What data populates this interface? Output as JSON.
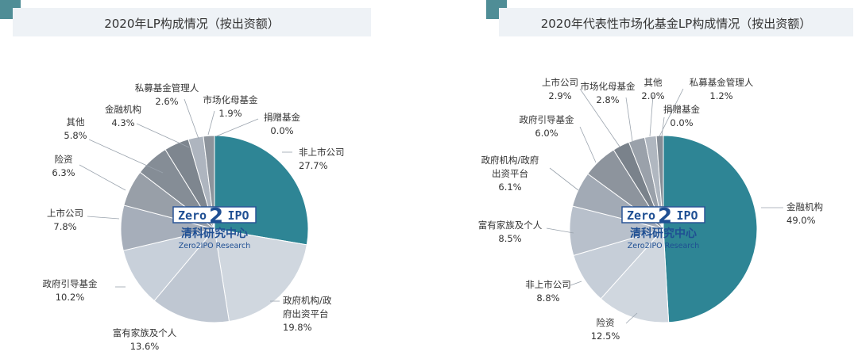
{
  "charts": [
    {
      "title": "2020年LP构成情况（按出资额）",
      "chart_data": {
        "type": "pie",
        "title": "2020年LP构成情况（按出资额）",
        "slices": [
          {
            "label": "非上市公司",
            "value": 27.7,
            "display": "27.7%",
            "color": "#2e8595"
          },
          {
            "label": "政府机构/政府出资平台",
            "value": 19.8,
            "display": "19.8%",
            "color": "#d0d7df"
          },
          {
            "label": "富有家族及个人",
            "value": 13.6,
            "display": "13.6%",
            "color": "#bfc7d2"
          },
          {
            "label": "政府引导基金",
            "value": 10.2,
            "display": "10.2%",
            "color": "#c8d0da"
          },
          {
            "label": "上市公司",
            "value": 7.8,
            "display": "7.8%",
            "color": "#a6aeba"
          },
          {
            "label": "险资",
            "value": 6.3,
            "display": "6.3%",
            "color": "#989fa8"
          },
          {
            "label": "其他",
            "value": 5.8,
            "display": "5.8%",
            "color": "#858d96"
          },
          {
            "label": "金融机构",
            "value": 4.3,
            "display": "4.3%",
            "color": "#7e868f"
          },
          {
            "label": "私募基金管理人",
            "value": 2.6,
            "display": "2.6%",
            "color": "#aeb5bf"
          },
          {
            "label": "市场化母基金",
            "value": 1.9,
            "display": "1.9%",
            "color": "#8d949c"
          },
          {
            "label": "捐赠基金",
            "value": 0.0,
            "display": "0.0%",
            "color": "#6f7780"
          }
        ]
      }
    },
    {
      "title": "2020年代表性市场化基金LP构成情况（按出资额）",
      "chart_data": {
        "type": "pie",
        "title": "2020年代表性市场化基金LP构成情况（按出资额）",
        "slices": [
          {
            "label": "金融机构",
            "value": 49.0,
            "display": "49.0%",
            "color": "#2e8595"
          },
          {
            "label": "险资",
            "value": 12.5,
            "display": "12.5%",
            "color": "#d0d7df"
          },
          {
            "label": "非上市公司",
            "value": 8.8,
            "display": "8.8%",
            "color": "#c6ced8"
          },
          {
            "label": "富有家族及个人",
            "value": 8.5,
            "display": "8.5%",
            "color": "#b8c0cb"
          },
          {
            "label": "政府机构/政府出资平台",
            "value": 6.1,
            "display": "6.1%",
            "color": "#a2aab5"
          },
          {
            "label": "政府引导基金",
            "value": 6.0,
            "display": "6.0%",
            "color": "#8d949d"
          },
          {
            "label": "上市公司",
            "value": 2.9,
            "display": "2.9%",
            "color": "#7a828b"
          },
          {
            "label": "市场化母基金",
            "value": 2.8,
            "display": "2.8%",
            "color": "#9aa1aa"
          },
          {
            "label": "其他",
            "value": 2.0,
            "display": "2.0%",
            "color": "#b0b7c0"
          },
          {
            "label": "私募基金管理人",
            "value": 1.2,
            "display": "1.2%",
            "color": "#868e97"
          },
          {
            "label": "捐赠基金",
            "value": 0.0,
            "display": "0.0%",
            "color": "#6f7780"
          }
        ]
      }
    }
  ],
  "watermark": {
    "logo_left": "Zero",
    "logo_num": "2",
    "logo_right": "IPO",
    "cn": "清科研究中心",
    "en": "Zero2IPO Research"
  }
}
